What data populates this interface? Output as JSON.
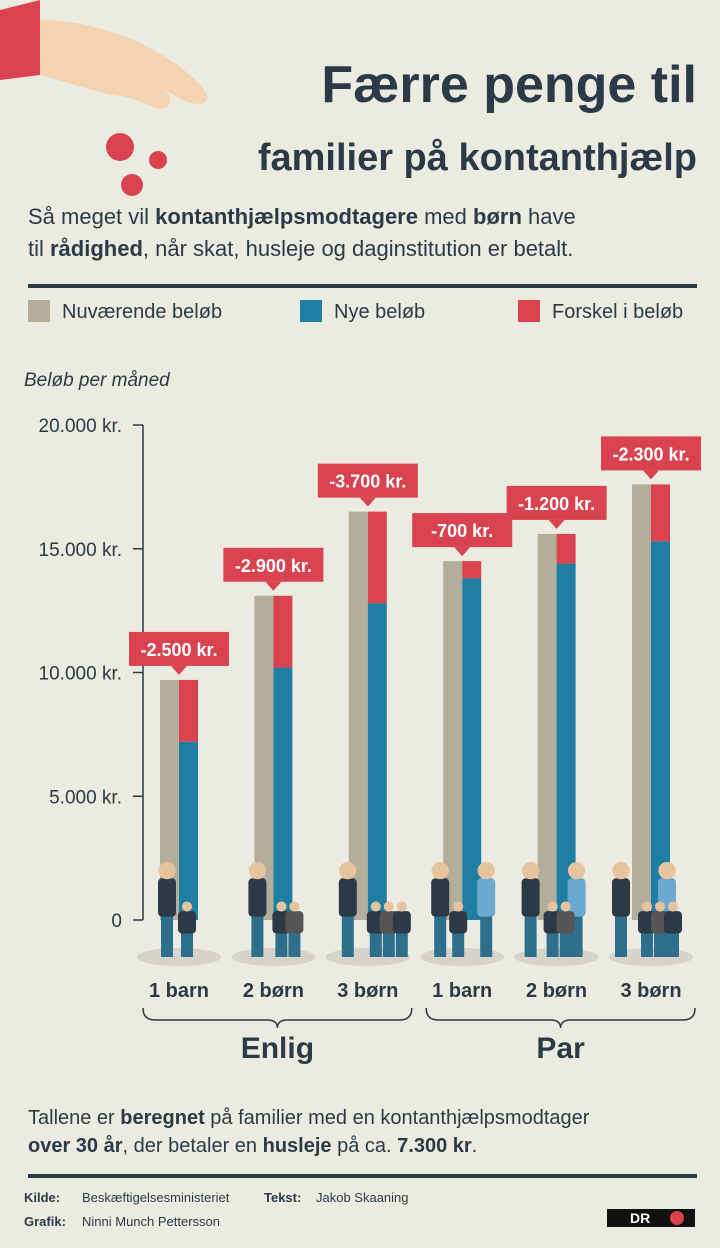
{
  "header": {
    "title_lines": [
      "Færre penge til",
      "familier på kontanthjælp"
    ],
    "subtitle_lines": [
      [
        "Så meget vil ",
        "kontanthjælpsmodtagere",
        " med ",
        "børn",
        " have"
      ],
      [
        "til ",
        "rådighed",
        ", når skat, husleje og daginstitution er betalt."
      ]
    ]
  },
  "chart_data": {
    "type": "bar",
    "y_label": "Beløb per måned",
    "groups": [
      {
        "name": "Enlig",
        "categories": [
          "1 barn",
          "2 børn",
          "3 børn"
        ]
      },
      {
        "name": "Par",
        "categories": [
          "1 barn",
          "2 børn",
          "3 børn"
        ]
      }
    ],
    "series": [
      {
        "name": "Nuværende beløb",
        "color": "#b3ae9c",
        "values": [
          9700,
          13100,
          16500,
          14500,
          15600,
          17600
        ]
      },
      {
        "name": "Nye beløb",
        "color": "#1f7fa2",
        "values": [
          7200,
          10200,
          12800,
          13800,
          14400,
          15300
        ]
      },
      {
        "name": "Forskel i beløb",
        "color": "#d9434f",
        "values": [
          -2500,
          -2900,
          -3700,
          -700,
          -1200,
          -2300
        ],
        "value_labels": [
          "-2.500 kr.",
          "-2.900 kr.",
          "-3.700 kr.",
          "-700 kr.",
          "-1.200 kr.",
          "-2.300 kr."
        ]
      }
    ],
    "ylim": [
      0,
      20000
    ],
    "yticks": [
      0,
      {
        "value": 5000,
        "label": "5.000 kr."
      },
      {
        "value": 10000,
        "label": "10.000 kr."
      },
      {
        "value": 15000,
        "label": "15.000 kr."
      },
      {
        "value": 20000,
        "label": "20.000 kr."
      }
    ]
  },
  "footnote_lines": [
    [
      "Tallene er ",
      "beregnet",
      " på familier med en kontanthjælpsmodtager"
    ],
    [
      "over 30 år",
      ", der betaler en ",
      "husleje",
      " på ca. ",
      "7.300 kr",
      "."
    ]
  ],
  "credits": {
    "source_label": "Kilde:",
    "source": "Beskæftigelsesministeriet",
    "text_label": "Tekst:",
    "text": "Jakob Skaaning",
    "graphics_label": "Grafik:",
    "graphics": "Ninni Munch Pettersson",
    "logo": "DR"
  }
}
